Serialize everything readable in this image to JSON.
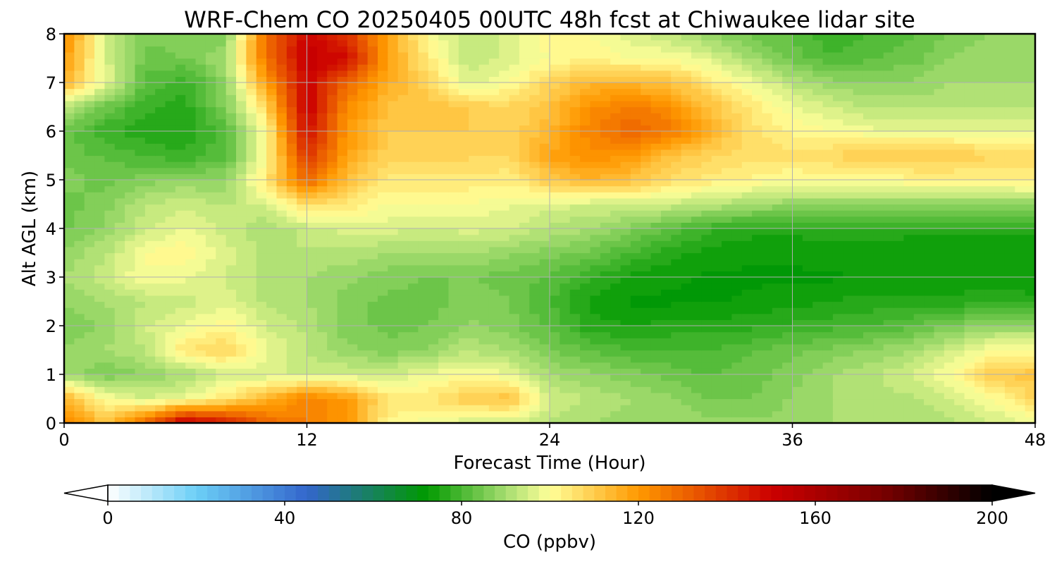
{
  "chart_data": {
    "type": "heatmap",
    "title": "WRF-Chem CO  20250405 00UTC 48h fcst at Chiwaukee lidar site",
    "xlabel": "Forecast Time (Hour)",
    "ylabel": "Alt AGL (km)",
    "xlim": [
      0,
      48
    ],
    "ylim": [
      0,
      8
    ],
    "xticks": [
      "0",
      "12",
      "24",
      "36",
      "48"
    ],
    "yticks": [
      "0",
      "1",
      "2",
      "3",
      "4",
      "5",
      "6",
      "7",
      "8"
    ],
    "grid": true,
    "colorbar": {
      "label": "CO  (ppbv)",
      "min": 0,
      "max": 200,
      "step": 2.5,
      "ticks": [
        "0",
        "40",
        "80",
        "120",
        "160",
        "200"
      ],
      "extend": "both",
      "stops": [
        {
          "v": 0,
          "color": "#ffffff"
        },
        {
          "v": 20,
          "color": "#6ccff6"
        },
        {
          "v": 45,
          "color": "#3366cc"
        },
        {
          "v": 72,
          "color": "#009900"
        },
        {
          "v": 90,
          "color": "#a6dd70"
        },
        {
          "v": 100,
          "color": "#ffff99"
        },
        {
          "v": 120,
          "color": "#ff9900"
        },
        {
          "v": 150,
          "color": "#cc0000"
        },
        {
          "v": 175,
          "color": "#7a0000"
        },
        {
          "v": 200,
          "color": "#000000"
        }
      ]
    },
    "hours": [
      0,
      2,
      4,
      6,
      8,
      10,
      12,
      14,
      16,
      18,
      20,
      22,
      24,
      26,
      28,
      30,
      32,
      34,
      36,
      38,
      40,
      42,
      44,
      46,
      48
    ],
    "altitudes_km": [
      0,
      0.5,
      1,
      1.5,
      2,
      2.5,
      3,
      3.5,
      4,
      4.5,
      5,
      5.5,
      6,
      6.5,
      7,
      7.5,
      8
    ],
    "values_ppbv": [
      [
        125,
        112,
        130,
        155,
        145,
        130,
        125,
        120,
        102,
        98,
        95,
        95,
        92,
        90,
        88,
        90,
        88,
        88,
        88,
        90,
        90,
        90,
        92,
        95,
        98
      ],
      [
        115,
        100,
        95,
        98,
        105,
        115,
        125,
        120,
        105,
        105,
        110,
        112,
        95,
        92,
        90,
        88,
        85,
        85,
        88,
        90,
        92,
        92,
        95,
        100,
        108
      ],
      [
        90,
        85,
        88,
        90,
        95,
        95,
        95,
        95,
        95,
        98,
        100,
        98,
        90,
        88,
        86,
        84,
        82,
        84,
        86,
        90,
        92,
        95,
        100,
        110,
        112
      ],
      [
        88,
        90,
        92,
        105,
        108,
        98,
        92,
        88,
        86,
        88,
        92,
        90,
        85,
        82,
        80,
        80,
        80,
        82,
        84,
        86,
        88,
        90,
        95,
        100,
        100
      ],
      [
        85,
        88,
        95,
        98,
        102,
        95,
        92,
        86,
        84,
        85,
        88,
        86,
        82,
        76,
        75,
        76,
        76,
        77,
        78,
        79,
        80,
        82,
        86,
        88,
        88
      ],
      [
        88,
        90,
        92,
        94,
        96,
        92,
        90,
        86,
        84,
        84,
        86,
        85,
        80,
        74,
        72,
        72,
        72,
        73,
        74,
        75,
        76,
        76,
        76,
        77,
        76
      ],
      [
        90,
        94,
        100,
        98,
        95,
        92,
        90,
        88,
        86,
        85,
        85,
        84,
        82,
        78,
        74,
        73,
        72,
        72,
        72,
        72,
        73,
        73,
        73,
        73,
        73
      ],
      [
        88,
        92,
        100,
        102,
        96,
        92,
        92,
        92,
        90,
        90,
        90,
        88,
        86,
        84,
        80,
        76,
        74,
        73,
        73,
        74,
        74,
        73,
        73,
        73,
        73
      ],
      [
        84,
        88,
        94,
        98,
        94,
        90,
        94,
        96,
        96,
        95,
        96,
        95,
        92,
        90,
        86,
        82,
        78,
        76,
        76,
        76,
        76,
        76,
        76,
        76,
        76
      ],
      [
        84,
        86,
        92,
        94,
        92,
        96,
        106,
        104,
        100,
        100,
        100,
        98,
        96,
        95,
        95,
        94,
        92,
        90,
        88,
        88,
        88,
        88,
        88,
        88,
        88
      ],
      [
        86,
        84,
        86,
        88,
        88,
        105,
        130,
        112,
        104,
        104,
        104,
        103,
        110,
        115,
        112,
        106,
        104,
        102,
        100,
        100,
        100,
        102,
        102,
        102,
        104
      ],
      [
        84,
        82,
        80,
        78,
        82,
        100,
        140,
        118,
        108,
        108,
        108,
        108,
        118,
        122,
        120,
        112,
        108,
        106,
        106,
        108,
        110,
        110,
        110,
        108,
        106
      ],
      [
        84,
        78,
        76,
        75,
        82,
        100,
        148,
        120,
        110,
        110,
        110,
        108,
        114,
        124,
        130,
        126,
        115,
        106,
        102,
        100,
        98,
        98,
        98,
        98,
        98
      ],
      [
        92,
        84,
        78,
        76,
        86,
        108,
        152,
        122,
        112,
        112,
        110,
        108,
        112,
        122,
        126,
        122,
        112,
        104,
        98,
        95,
        92,
        92,
        92,
        92,
        92
      ],
      [
        115,
        98,
        82,
        78,
        88,
        118,
        150,
        130,
        116,
        108,
        96,
        100,
        108,
        114,
        114,
        112,
        104,
        98,
        92,
        88,
        88,
        88,
        90,
        90,
        90
      ],
      [
        120,
        96,
        84,
        85,
        90,
        128,
        152,
        148,
        118,
        104,
        92,
        96,
        100,
        102,
        100,
        100,
        96,
        90,
        84,
        80,
        82,
        84,
        88,
        88,
        90
      ],
      [
        124,
        95,
        86,
        86,
        86,
        128,
        150,
        140,
        118,
        100,
        92,
        96,
        102,
        100,
        96,
        92,
        88,
        84,
        82,
        78,
        80,
        82,
        86,
        88,
        90
      ]
    ]
  }
}
